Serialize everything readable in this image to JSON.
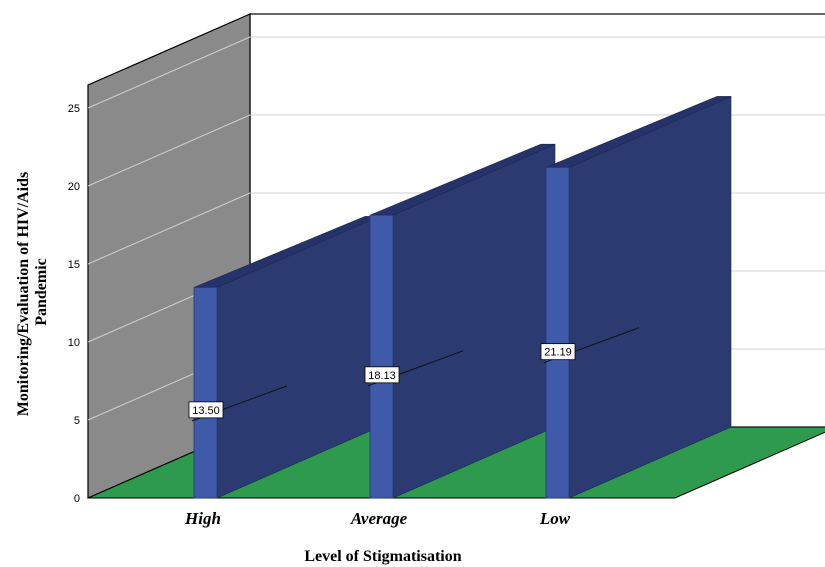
{
  "chart_data": {
    "type": "bar",
    "categories": [
      "High",
      "Average",
      "Low"
    ],
    "values": [
      13.5,
      18.13,
      21.19
    ],
    "value_labels": [
      "13.50",
      "18.13",
      "21.19"
    ],
    "title": "",
    "xlabel": "Level of Stigmatisation",
    "ylabel_lines": [
      "Monitoring/Evaluation of HIV/Aids",
      "Pandemic"
    ],
    "ylim": [
      0,
      25
    ],
    "yticks": [
      "0",
      "5",
      "10",
      "15",
      "20",
      "25"
    ],
    "grid": true,
    "legend": "none",
    "style": "3d",
    "colors": {
      "bar_front": "#3f5aa8",
      "bar_side": "#2c3a72",
      "bar_top": "#25336a",
      "back_wall": "#ffffff",
      "side_wall": "#8a8a8a",
      "floor": "#2e9a4e",
      "grid": "#d0d0d0"
    }
  }
}
